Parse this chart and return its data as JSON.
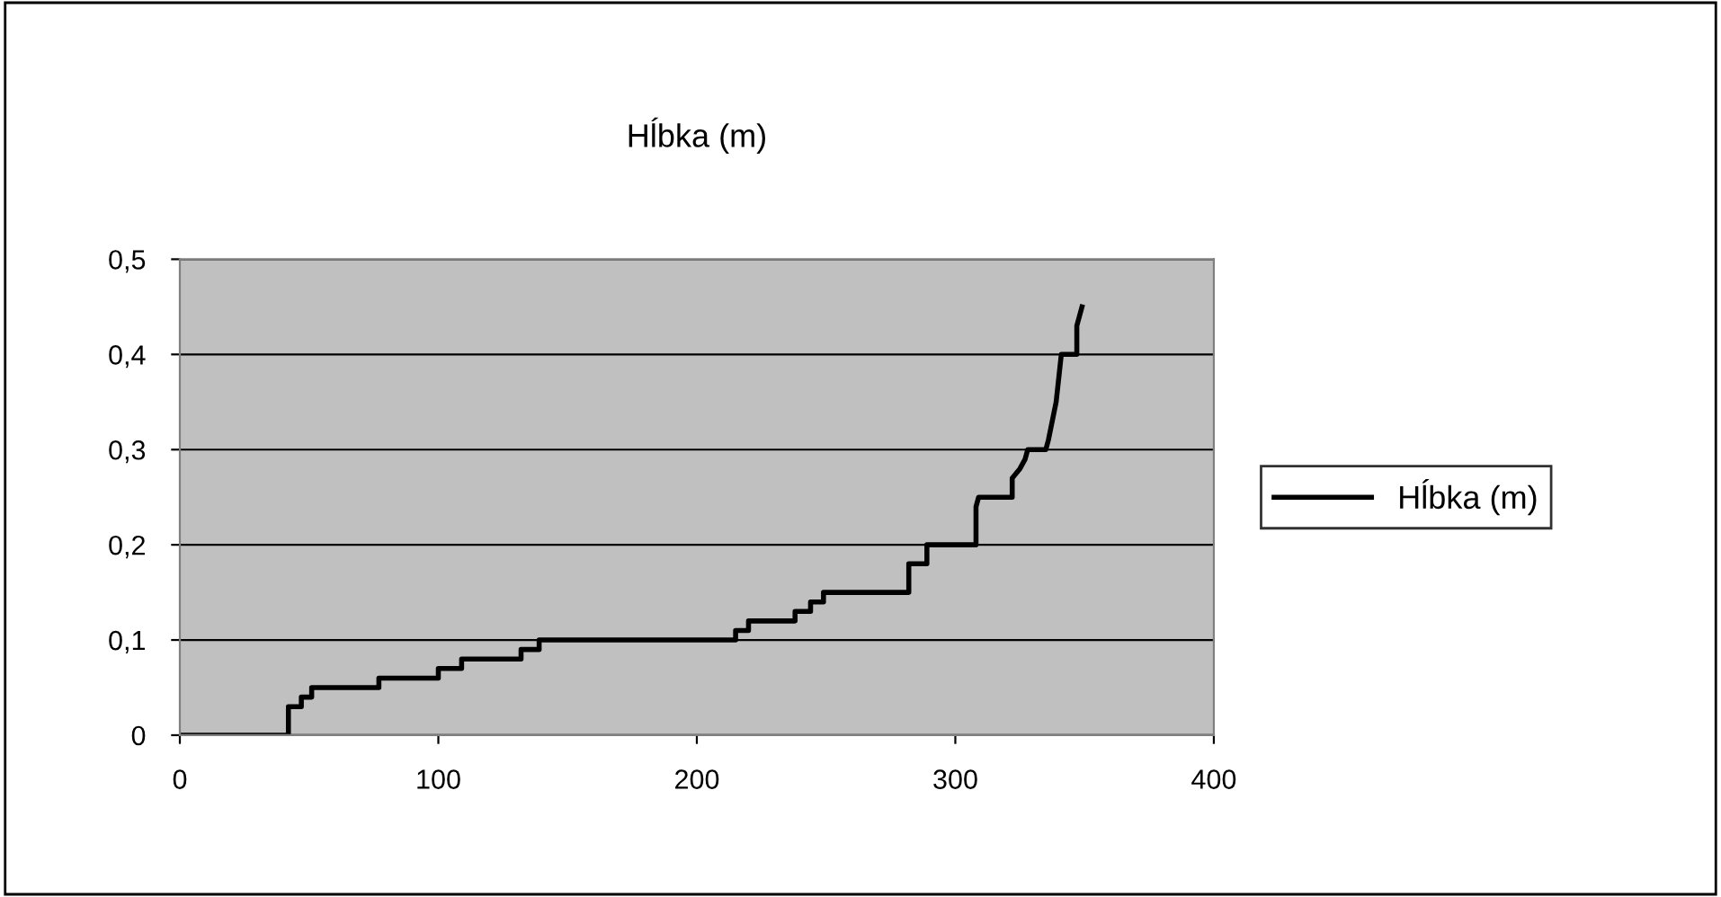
{
  "chart_data": {
    "type": "line",
    "title": "Hĺbka (m)",
    "series": [
      {
        "name": "Hĺbka (m)",
        "color": "#000000",
        "x": [
          0,
          42,
          42,
          47,
          47,
          51,
          51,
          77,
          77,
          100,
          100,
          109,
          109,
          132,
          132,
          139,
          139,
          215,
          215,
          220,
          220,
          238,
          238,
          244,
          244,
          249,
          249,
          282,
          282,
          289,
          289,
          308,
          308,
          309,
          322,
          322,
          325,
          327,
          328,
          335,
          336,
          339,
          341,
          347,
          347,
          349
        ],
        "values": [
          0,
          0,
          0.03,
          0.03,
          0.04,
          0.04,
          0.05,
          0.05,
          0.06,
          0.06,
          0.07,
          0.07,
          0.08,
          0.08,
          0.09,
          0.09,
          0.1,
          0.1,
          0.11,
          0.11,
          0.12,
          0.12,
          0.13,
          0.13,
          0.14,
          0.14,
          0.15,
          0.15,
          0.18,
          0.18,
          0.2,
          0.2,
          0.24,
          0.25,
          0.25,
          0.27,
          0.28,
          0.29,
          0.3,
          0.3,
          0.31,
          0.35,
          0.4,
          0.4,
          0.43,
          0.45
        ]
      }
    ],
    "xlim": [
      0,
      400
    ],
    "xticks": [
      0,
      100,
      200,
      300,
      400
    ],
    "ylim": [
      0,
      0.5
    ],
    "yticks": [
      {
        "value": 0,
        "label": "0"
      },
      {
        "value": 0.1,
        "label": "0,1"
      },
      {
        "value": 0.2,
        "label": "0,2"
      },
      {
        "value": 0.3,
        "label": "0,3"
      },
      {
        "value": 0.4,
        "label": "0,4"
      },
      {
        "value": 0.5,
        "label": "0,5"
      }
    ],
    "grid": "y",
    "legend": "right",
    "marker": "none",
    "line_style": "solid"
  }
}
